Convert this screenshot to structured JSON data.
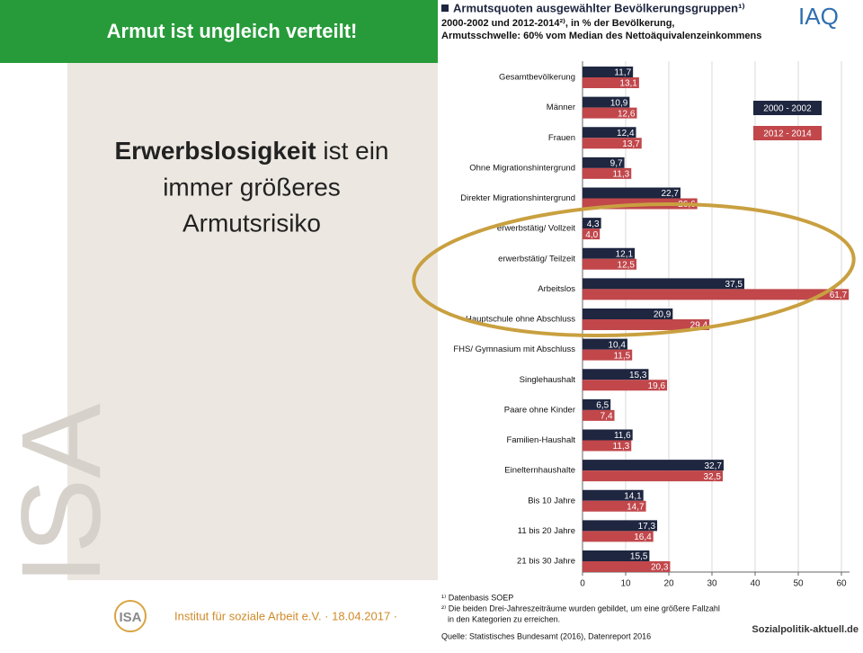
{
  "slide": {
    "title": "Armut ist ungleich verteilt!",
    "body": [
      "Erwerbslosigkeit",
      "ist ein",
      "immer größeres",
      "Armutsrisiko"
    ],
    "watermark": "ISA",
    "logo": "ISA",
    "footer": "Institut für soziale Arbeit e.V. · 18.04.2017 ·"
  },
  "chart_data": {
    "type": "barh",
    "title": "Armutsquoten ausgewählter Bevölkerungsgruppen¹⁾",
    "subtitle": [
      "2000-2002 und 2012-2014²⁾, in % der Bevölkerung,",
      "Armutsschwelle: 60% vom Median des Nettoäquivalenzeinkommens"
    ],
    "brand": "IAQ",
    "categories": [
      "Gesamtbevölkerung",
      "Männer",
      "Frauen",
      "Ohne Migrationshintergrund",
      "Direkter Migrationshintergrund",
      "erwerbstätig/ Vollzeit",
      "erwerbstätig/ Teilzeit",
      "Arbeitslos",
      "Hauptschule ohne Abschluss",
      "FHS/ Gymnasium mit Abschluss",
      "Singlehaushalt",
      "Paare ohne Kinder",
      "Familien-Haushalt",
      "Einelternhaushalte",
      "Bis 10 Jahre",
      "11 bis 20 Jahre",
      "21 bis 30 Jahre"
    ],
    "series": [
      {
        "name": "2000 - 2002",
        "color": "#1e2640",
        "values": [
          11.7,
          10.9,
          12.4,
          9.7,
          22.7,
          4.3,
          12.1,
          37.5,
          20.9,
          10.4,
          15.3,
          6.5,
          11.6,
          32.7,
          14.1,
          17.3,
          15.5
        ],
        "value_labels": [
          "11,7",
          "10,9",
          "12,4",
          "9,7",
          "22,7",
          "4,3",
          "12,1",
          "37,5",
          "20,9",
          "10,4",
          "15,3",
          "6,5",
          "11,6",
          "32,7",
          "14,1",
          "17,3",
          "15,5"
        ]
      },
      {
        "name": "2012 - 2014",
        "color": "#c1474b",
        "values": [
          13.1,
          12.6,
          13.7,
          11.3,
          26.6,
          4.0,
          12.5,
          61.7,
          29.4,
          11.5,
          19.6,
          7.4,
          11.3,
          32.5,
          14.7,
          16.4,
          20.3
        ],
        "value_labels": [
          "13,1",
          "12,6",
          "13,7",
          "11,3",
          "26,6",
          "4,0",
          "12,5",
          "61,7",
          "29,4",
          "11,5",
          "19,6",
          "7,4",
          "11,3",
          "32,5",
          "14,7",
          "16,4",
          "20,3"
        ]
      }
    ],
    "xlim": [
      0,
      60
    ],
    "xticks": [
      0,
      10,
      20,
      30,
      40,
      50,
      60
    ],
    "grid": true,
    "legend": "upper right",
    "footnotes": [
      "¹⁾ Datenbasis SOEP",
      "²⁾ Die beiden Drei-Jahreszeiträume wurden gebildet, um eine größere Fallzahl",
      "in den Kategorien zu erreichen."
    ],
    "source": "Quelle: Statistisches Bundesamt (2016), Datenreport 2016",
    "source_brand": "Sozialpolitik-aktuell.de"
  }
}
